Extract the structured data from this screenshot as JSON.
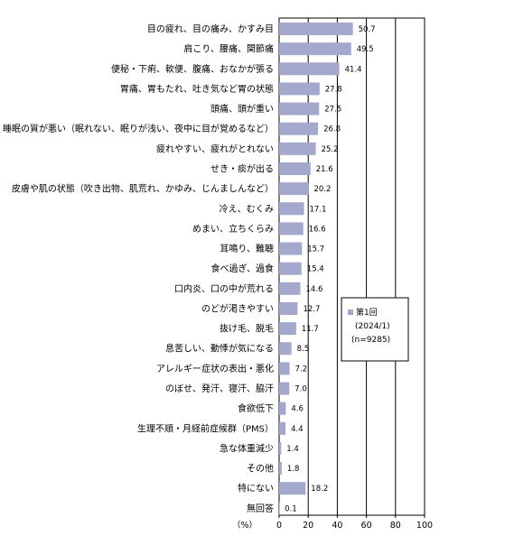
{
  "chart_data": {
    "type": "bar",
    "orientation": "horizontal",
    "categories": [
      "目の疲れ、目の痛み、かすみ目",
      "肩こり、腰痛、関節痛",
      "便秘・下痢、軟便、腹痛、おなかが張る",
      "胃痛、胃もたれ、吐き気など胃の状態",
      "頭痛、頭が重い",
      "睡眠の質が悪い（眠れない、眠りが浅い、夜中に目が覚めるなど）",
      "疲れやすい、疲れがとれない",
      "せき・痰が出る",
      "皮膚や肌の状態（吹き出物、肌荒れ、かゆみ、じんましんなど）",
      "冷え、むくみ",
      "めまい、立ちくらみ",
      "耳鳴り、難聴",
      "食べ過ぎ、過食",
      "口内炎、口の中が荒れる",
      "のどが渇きやすい",
      "抜け毛、脱毛",
      "息苦しい、動悸が気になる",
      "アレルギー症状の表出・悪化",
      "のぼせ、発汗、寝汗、脇汗",
      "食欲低下",
      "生理不順・月経前症候群（PMS）",
      "急な体重減少",
      "その他",
      "特にない",
      "無回答"
    ],
    "series": [
      {
        "name": "第1回",
        "values": [
          50.7,
          49.5,
          41.4,
          27.8,
          27.5,
          26.8,
          25.2,
          21.6,
          20.2,
          17.1,
          16.6,
          15.7,
          15.4,
          14.6,
          12.7,
          11.7,
          8.5,
          7.2,
          7.0,
          4.6,
          4.4,
          1.4,
          1.8,
          18.2,
          0.1
        ]
      }
    ],
    "value_labels": [
      "50.7",
      "49.5",
      "41.4",
      "27.8",
      "27.5",
      "26.8",
      "25.2",
      "21.6",
      "20.2",
      "17.1",
      "16.6",
      "15.7",
      "15.4",
      "14.6",
      "12.7",
      "11.7",
      "8.5",
      "7.2",
      "7.0",
      "4.6",
      "4.4",
      "1.4",
      "1.8",
      "18.2",
      "0.1"
    ],
    "xlim": [
      0,
      100
    ],
    "xticks": [
      0,
      20,
      40,
      60,
      80,
      100
    ],
    "xlabel": "（%）",
    "grid": true,
    "bar_color": "#a3a8cc",
    "legend": {
      "placement": "right",
      "name": "第1回",
      "lines": [
        "(2024/1)",
        "(n=9285)"
      ]
    }
  }
}
